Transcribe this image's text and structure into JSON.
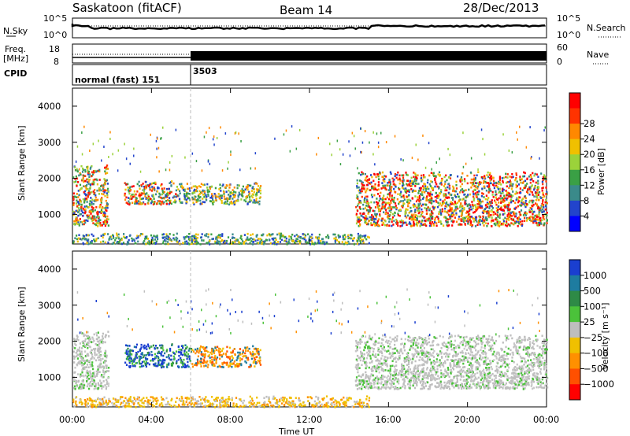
{
  "header": {
    "station": "Saskatoon (fitACF)",
    "beam": "Beam 14",
    "date": "28/Dec/2013"
  },
  "noise_panel": {
    "left_label": "N.Sky",
    "right_label": "N.Search",
    "left_ticks": [
      "10^5",
      "10^0"
    ],
    "right_ticks": [
      "10^5",
      "10^0"
    ]
  },
  "freq_panel": {
    "left_label_1": "Freq.",
    "left_label_2": "[MHz]",
    "right_label": "Nave",
    "left_ticks": [
      "18",
      "8"
    ],
    "right_ticks": [
      "60",
      "0"
    ]
  },
  "cpid_panel": {
    "label": "CPID",
    "segments": [
      {
        "text": "normal (fast) 151",
        "start_hour": 0
      },
      {
        "text": "3503",
        "start_hour": 6
      }
    ]
  },
  "chart_data": [
    {
      "type": "heatmap",
      "name": "power",
      "ylabel": "Slant Range [km]",
      "xlabel": "",
      "x_range_hours": [
        0,
        24
      ],
      "ylim": [
        180,
        4500
      ],
      "y_ticks": [
        "1000",
        "2000",
        "3000",
        "4000"
      ],
      "x_ticks": [
        "00:00",
        "04:00",
        "08:00",
        "12:00",
        "16:00",
        "20:00",
        "00:00"
      ],
      "colorbar": {
        "label": "Power [dB]",
        "ticks": [
          "4",
          "8",
          "12",
          "16",
          "20",
          "24",
          "28"
        ],
        "colors": [
          "#0000ff",
          "#2244cc",
          "#3a8a8a",
          "#3aa045",
          "#9bd23a",
          "#f0c000",
          "#ff8800",
          "#ff3300",
          "#ff0000"
        ]
      },
      "regions": [
        {
          "t0": 0.0,
          "t1": 1.8,
          "r0": 700,
          "r1": 2400,
          "level": "mixed-high"
        },
        {
          "t0": 2.6,
          "t1": 5.3,
          "r0": 1300,
          "r1": 1950,
          "level": "mixed-high"
        },
        {
          "t0": 5.3,
          "t1": 9.5,
          "r0": 1300,
          "r1": 1900,
          "level": "mid"
        },
        {
          "t0": 14.3,
          "t1": 24.0,
          "r0": 700,
          "r1": 2200,
          "level": "high"
        },
        {
          "t0": 0.0,
          "t1": 15.0,
          "r0": 200,
          "r1": 500,
          "level": "low"
        }
      ]
    },
    {
      "type": "heatmap",
      "name": "velocity",
      "ylabel": "Slant Range [km]",
      "xlabel": "Time UT",
      "x_range_hours": [
        0,
        24
      ],
      "ylim": [
        180,
        4500
      ],
      "y_ticks": [
        "1000",
        "2000",
        "3000",
        "4000"
      ],
      "x_ticks": [
        "00:00",
        "04:00",
        "08:00",
        "12:00",
        "16:00",
        "20:00",
        "00:00"
      ],
      "colorbar": {
        "label": "Velocity [m s⁻¹]",
        "ticks": [
          "1000",
          "500",
          "100",
          "25",
          "−25",
          "−100",
          "−500",
          "−1000"
        ],
        "colors": [
          "#1a3fd0",
          "#1e7ca0",
          "#2e8a46",
          "#4bc23a",
          "#bebebe",
          "#f0c000",
          "#ff9000",
          "#ff5000",
          "#ff0000"
        ]
      },
      "regions": [
        {
          "t0": 0.0,
          "t1": 1.8,
          "r0": 700,
          "r1": 2300,
          "level": "ground"
        },
        {
          "t0": 2.6,
          "t1": 6.0,
          "r0": 1300,
          "r1": 1950,
          "level": "positive"
        },
        {
          "t0": 6.0,
          "t1": 9.5,
          "r0": 1300,
          "r1": 1900,
          "level": "negative"
        },
        {
          "t0": 14.3,
          "t1": 24.0,
          "r0": 700,
          "r1": 2200,
          "level": "ground"
        },
        {
          "t0": 0.0,
          "t1": 15.0,
          "r0": 200,
          "r1": 500,
          "level": "negative-low"
        }
      ]
    }
  ],
  "footer": {
    "x_axis_label": "Time UT"
  }
}
